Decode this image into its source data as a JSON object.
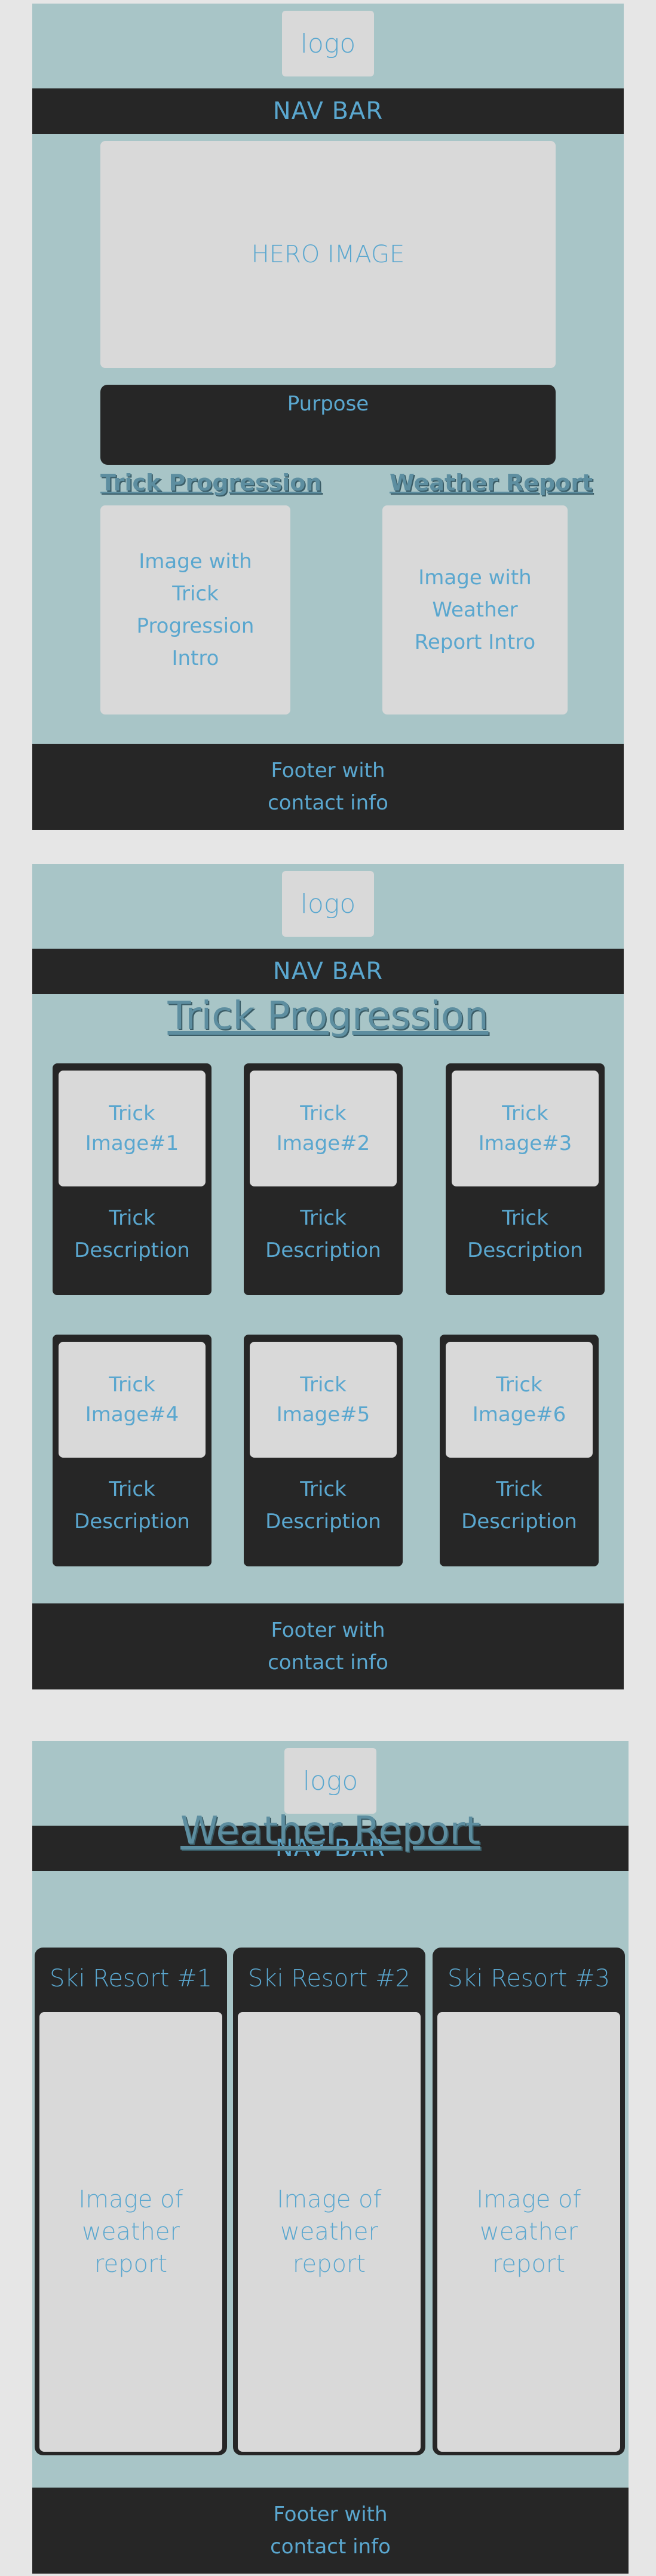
{
  "common": {
    "logo": "logo",
    "nav": "NAV BAR",
    "footer": "Footer with\ncontact info"
  },
  "home": {
    "hero": "HERO IMAGE",
    "purpose": "Purpose",
    "trick_link": "Trick Progression",
    "weather_link": "Weather Report",
    "trick_intro": "Image with\nTrick\nProgression\nIntro",
    "weather_intro": "Image with\nWeather\nReport Intro"
  },
  "tricks": {
    "title": "Trick Progression",
    "cards": [
      {
        "image": "Trick\nImage#1",
        "desc": "Trick\nDescription"
      },
      {
        "image": "Trick\nImage#2",
        "desc": "Trick\nDescription"
      },
      {
        "image": "Trick\nImage#3",
        "desc": "Trick\nDescription"
      },
      {
        "image": "Trick\nImage#4",
        "desc": "Trick\nDescription"
      },
      {
        "image": "Trick\nImage#5",
        "desc": "Trick\nDescription"
      },
      {
        "image": "Trick\nImage#6",
        "desc": "Trick\nDescription"
      }
    ]
  },
  "weather": {
    "title": "Weather Report",
    "resorts": [
      {
        "name": "Ski Resort #1",
        "image": "Image of\nweather\nreport"
      },
      {
        "name": "Ski Resort #2",
        "image": "Image of\nweather\nreport"
      },
      {
        "name": "Ski Resort #3",
        "image": "Image of\nweather\nreport"
      }
    ]
  }
}
